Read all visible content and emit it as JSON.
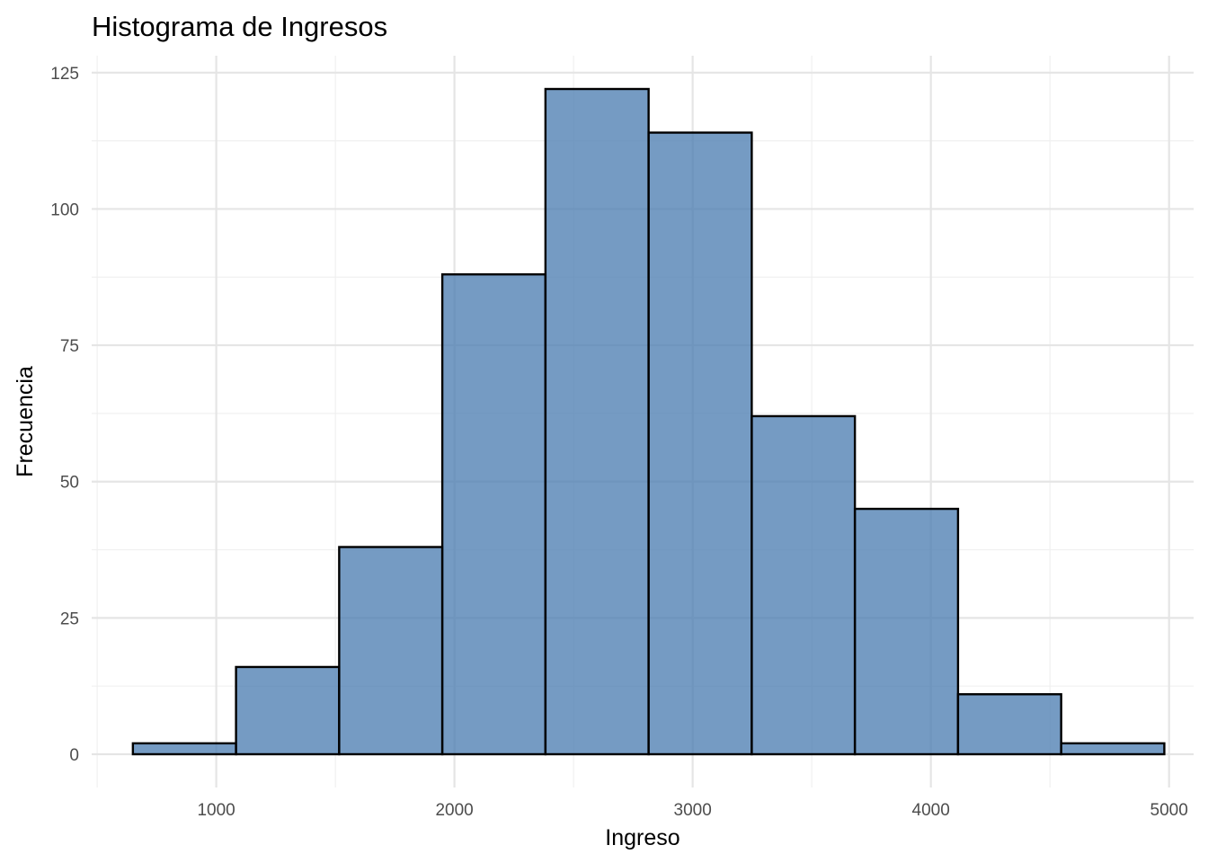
{
  "chart_data": {
    "type": "bar",
    "title": "Histograma de Ingresos",
    "xlabel": "Ingreso",
    "ylabel": "Frecuencia",
    "bins": [
      {
        "x0": 650,
        "x1": 1083,
        "count": 2
      },
      {
        "x0": 1083,
        "x1": 1516,
        "count": 16
      },
      {
        "x0": 1516,
        "x1": 1949,
        "count": 38
      },
      {
        "x0": 1949,
        "x1": 2382,
        "count": 88
      },
      {
        "x0": 2382,
        "x1": 2815,
        "count": 122
      },
      {
        "x0": 2815,
        "x1": 3248,
        "count": 114
      },
      {
        "x0": 3248,
        "x1": 3681,
        "count": 62
      },
      {
        "x0": 3681,
        "x1": 4114,
        "count": 45
      },
      {
        "x0": 4114,
        "x1": 4547,
        "count": 11
      },
      {
        "x0": 4547,
        "x1": 4980,
        "count": 2
      }
    ],
    "xlim": [
      477,
      5103
    ],
    "ylim": [
      -6.1,
      128.1
    ],
    "x_ticks": [
      1000,
      2000,
      3000,
      4000,
      5000
    ],
    "x_tick_labels": [
      "1000",
      "2000",
      "3000",
      "4000",
      "5000"
    ],
    "x_minor_ticks": [
      500,
      1500,
      2500,
      3500,
      4500
    ],
    "y_ticks": [
      0,
      25,
      50,
      75,
      100,
      125
    ],
    "y_tick_labels": [
      "0",
      "25",
      "50",
      "75",
      "100",
      "125"
    ],
    "y_minor_ticks": [
      12.5,
      37.5,
      62.5,
      87.5,
      112.5
    ],
    "grid": true,
    "legend": "none",
    "bar_fill": "#4a7cb0",
    "bar_fill_opacity": 0.76,
    "bar_stroke": "#000000"
  }
}
